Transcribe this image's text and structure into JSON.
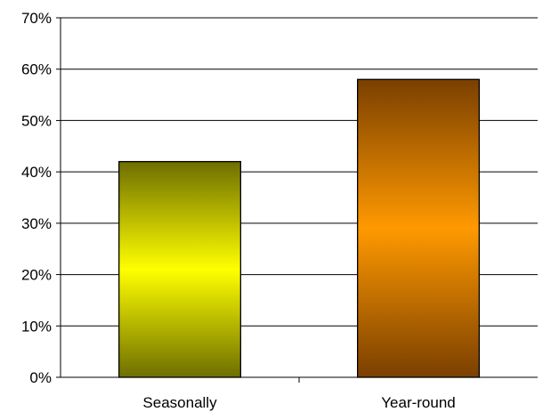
{
  "chart_data": {
    "type": "bar",
    "categories": [
      "Seasonally",
      "Year-round"
    ],
    "values": [
      42,
      58
    ],
    "ylim": [
      0,
      70
    ],
    "yticks": [
      0,
      10,
      20,
      30,
      40,
      50,
      60,
      70
    ],
    "ytick_labels": [
      "0%",
      "10%",
      "20%",
      "30%",
      "40%",
      "50%",
      "60%",
      "70%"
    ],
    "grid": true,
    "bar_colors": [
      {
        "edge": "#6e6e00",
        "mid": "#ffff00"
      },
      {
        "edge": "#7a3f00",
        "mid": "#ff9900"
      }
    ]
  }
}
